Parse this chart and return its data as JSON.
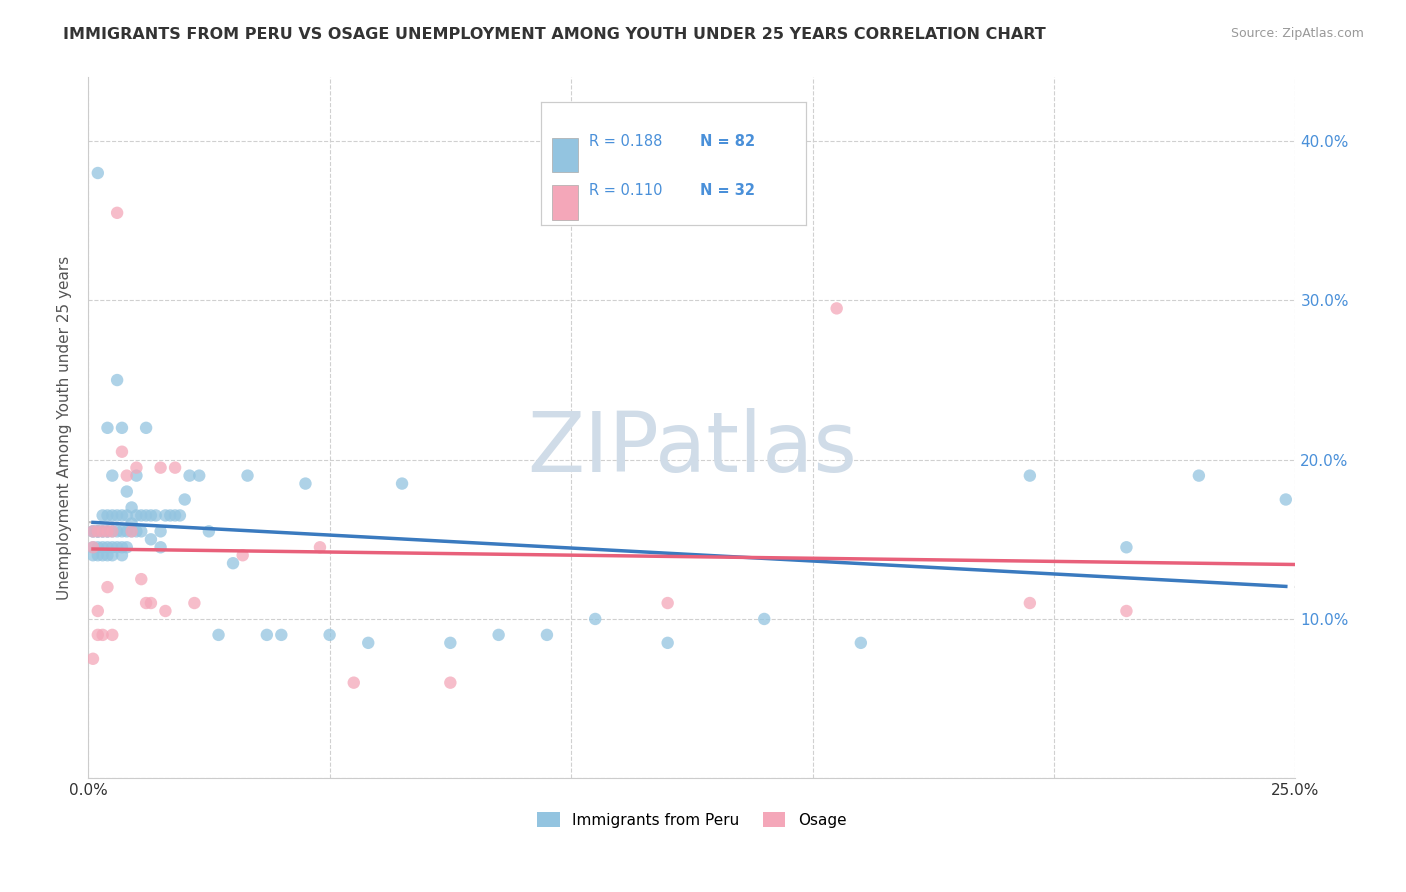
{
  "title": "IMMIGRANTS FROM PERU VS OSAGE UNEMPLOYMENT AMONG YOUTH UNDER 25 YEARS CORRELATION CHART",
  "source": "Source: ZipAtlas.com",
  "ylabel": "Unemployment Among Youth under 25 years",
  "legend_label1": "Immigrants from Peru",
  "legend_label2": "Osage",
  "R1": 0.188,
  "N1": 82,
  "R2": 0.11,
  "N2": 32,
  "blue_color": "#93c4e0",
  "pink_color": "#f4a7b9",
  "trend_blue": "#3a7abf",
  "trend_pink": "#e8607a",
  "trend_dashed_color": "#bbbbbb",
  "xlim": [
    0.0,
    0.25
  ],
  "ylim": [
    0.0,
    0.44
  ],
  "xtick_positions": [
    0.0,
    0.05,
    0.1,
    0.15,
    0.2,
    0.25
  ],
  "ytick_positions": [
    0.0,
    0.1,
    0.2,
    0.3,
    0.4
  ],
  "blue_x": [
    0.001,
    0.001,
    0.001,
    0.001,
    0.002,
    0.002,
    0.002,
    0.002,
    0.002,
    0.002,
    0.003,
    0.003,
    0.003,
    0.003,
    0.003,
    0.004,
    0.004,
    0.004,
    0.004,
    0.004,
    0.004,
    0.005,
    0.005,
    0.005,
    0.005,
    0.005,
    0.006,
    0.006,
    0.006,
    0.006,
    0.007,
    0.007,
    0.007,
    0.007,
    0.007,
    0.008,
    0.008,
    0.008,
    0.008,
    0.009,
    0.009,
    0.009,
    0.01,
    0.01,
    0.01,
    0.011,
    0.011,
    0.012,
    0.012,
    0.013,
    0.013,
    0.014,
    0.015,
    0.015,
    0.016,
    0.017,
    0.018,
    0.019,
    0.02,
    0.021,
    0.023,
    0.025,
    0.027,
    0.03,
    0.033,
    0.037,
    0.04,
    0.045,
    0.05,
    0.058,
    0.065,
    0.075,
    0.085,
    0.095,
    0.105,
    0.12,
    0.14,
    0.16,
    0.195,
    0.215,
    0.23,
    0.248
  ],
  "blue_y": [
    0.155,
    0.155,
    0.145,
    0.14,
    0.155,
    0.155,
    0.145,
    0.14,
    0.155,
    0.38,
    0.165,
    0.155,
    0.145,
    0.14,
    0.155,
    0.165,
    0.155,
    0.145,
    0.14,
    0.22,
    0.155,
    0.165,
    0.155,
    0.145,
    0.14,
    0.19,
    0.165,
    0.155,
    0.145,
    0.25,
    0.165,
    0.155,
    0.145,
    0.14,
    0.22,
    0.165,
    0.155,
    0.145,
    0.18,
    0.17,
    0.155,
    0.16,
    0.165,
    0.155,
    0.19,
    0.165,
    0.155,
    0.165,
    0.22,
    0.165,
    0.15,
    0.165,
    0.155,
    0.145,
    0.165,
    0.165,
    0.165,
    0.165,
    0.175,
    0.19,
    0.19,
    0.155,
    0.09,
    0.135,
    0.19,
    0.09,
    0.09,
    0.185,
    0.09,
    0.085,
    0.185,
    0.085,
    0.09,
    0.09,
    0.1,
    0.085,
    0.1,
    0.085,
    0.19,
    0.145,
    0.19,
    0.175
  ],
  "pink_x": [
    0.001,
    0.001,
    0.001,
    0.002,
    0.002,
    0.002,
    0.003,
    0.003,
    0.004,
    0.004,
    0.005,
    0.005,
    0.006,
    0.007,
    0.008,
    0.009,
    0.01,
    0.011,
    0.012,
    0.013,
    0.015,
    0.016,
    0.018,
    0.022,
    0.032,
    0.048,
    0.055,
    0.075,
    0.12,
    0.155,
    0.195,
    0.215
  ],
  "pink_y": [
    0.155,
    0.145,
    0.075,
    0.155,
    0.105,
    0.09,
    0.155,
    0.09,
    0.155,
    0.12,
    0.155,
    0.09,
    0.355,
    0.205,
    0.19,
    0.155,
    0.195,
    0.125,
    0.11,
    0.11,
    0.195,
    0.105,
    0.195,
    0.11,
    0.14,
    0.145,
    0.06,
    0.06,
    0.11,
    0.295,
    0.11,
    0.105
  ],
  "watermark_text": "ZIPatlas",
  "watermark_color": "#d0dce8",
  "background_color": "#ffffff",
  "grid_color": "#d0d0d0",
  "tick_color": "#4a90d9",
  "title_color": "#333333",
  "ylabel_color": "#555555"
}
